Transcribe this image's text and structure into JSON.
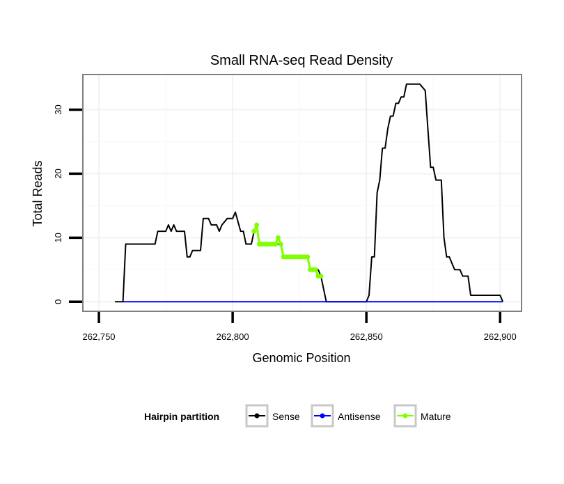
{
  "chart_data": {
    "type": "line",
    "title": "Small RNA-seq Read Density",
    "xlabel": "Genomic Position",
    "ylabel": "Total Reads",
    "xlim": [
      262744,
      262908
    ],
    "ylim": [
      -1.5,
      35.5
    ],
    "x_ticks": [
      262750,
      262800,
      262850,
      262900
    ],
    "x_tick_labels": [
      "262,750",
      "262,800",
      "262,850",
      "262,900"
    ],
    "y_ticks": [
      0,
      10,
      20,
      30
    ],
    "y_tick_labels": [
      "0",
      "10",
      "20",
      "30"
    ],
    "grid": true,
    "legend": {
      "title": "Hairpin partition",
      "position": "bottom",
      "entries": [
        {
          "name": "Sense",
          "color": "#000000"
        },
        {
          "name": "Antisense",
          "color": "#0000ff"
        },
        {
          "name": "Mature",
          "color": "#7fff00"
        }
      ]
    },
    "series": [
      {
        "name": "Sense",
        "color": "#000000",
        "markers": false,
        "x": [
          262756,
          262759,
          262760,
          262771,
          262772,
          262775,
          262776,
          262777,
          262778,
          262779,
          262782,
          262783,
          262784,
          262785,
          262788,
          262789,
          262791,
          262792,
          262794,
          262795,
          262796,
          262798,
          262800,
          262801,
          262803,
          262804,
          262805,
          262807,
          262808,
          262809,
          262810,
          262817,
          262818,
          262819,
          262828,
          262829,
          262832,
          262833,
          262835,
          262850,
          262851,
          262852,
          262853,
          262854,
          262855,
          262856,
          262857,
          262858,
          262859,
          262860,
          262861,
          262862,
          262863,
          262864,
          262865,
          262866,
          262867,
          262870,
          262872,
          262873,
          262874,
          262875,
          262876,
          262877,
          262878,
          262879,
          262880,
          262881,
          262882,
          262883,
          262884,
          262885,
          262886,
          262887,
          262888,
          262889,
          262890,
          262891,
          262900,
          262901
        ],
        "y": [
          0,
          0,
          9,
          9,
          11,
          11,
          12,
          11,
          12,
          11,
          11,
          7,
          7,
          8,
          8,
          13,
          13,
          12,
          12,
          11,
          12,
          13,
          13,
          14,
          11,
          11,
          9,
          9,
          11,
          12,
          9,
          9,
          9,
          7,
          7,
          5,
          5,
          4,
          0,
          0,
          1,
          7,
          7,
          17,
          19,
          24,
          24,
          27,
          29,
          29,
          31,
          31,
          32,
          32,
          34,
          34,
          34,
          34,
          33,
          27,
          21,
          21,
          19,
          19,
          19,
          10,
          7,
          7,
          6,
          5,
          5,
          5,
          4,
          4,
          4,
          1,
          1,
          1,
          1,
          0
        ]
      },
      {
        "name": "Antisense",
        "color": "#0000ff",
        "markers": false,
        "x": [
          262759,
          262901
        ],
        "y": [
          0,
          0
        ]
      },
      {
        "name": "Mature",
        "color": "#7fff00",
        "markers": true,
        "x": [
          262808,
          262809,
          262810,
          262811,
          262812,
          262813,
          262814,
          262815,
          262816,
          262817,
          262818,
          262819,
          262820,
          262821,
          262822,
          262823,
          262824,
          262825,
          262826,
          262827,
          262828,
          262829,
          262830,
          262831,
          262832,
          262833
        ],
        "y": [
          11,
          12,
          9,
          9,
          9,
          9,
          9,
          9,
          9,
          10,
          9,
          7,
          7,
          7,
          7,
          7,
          7,
          7,
          7,
          7,
          7,
          5,
          5,
          5,
          4,
          4
        ]
      }
    ]
  }
}
